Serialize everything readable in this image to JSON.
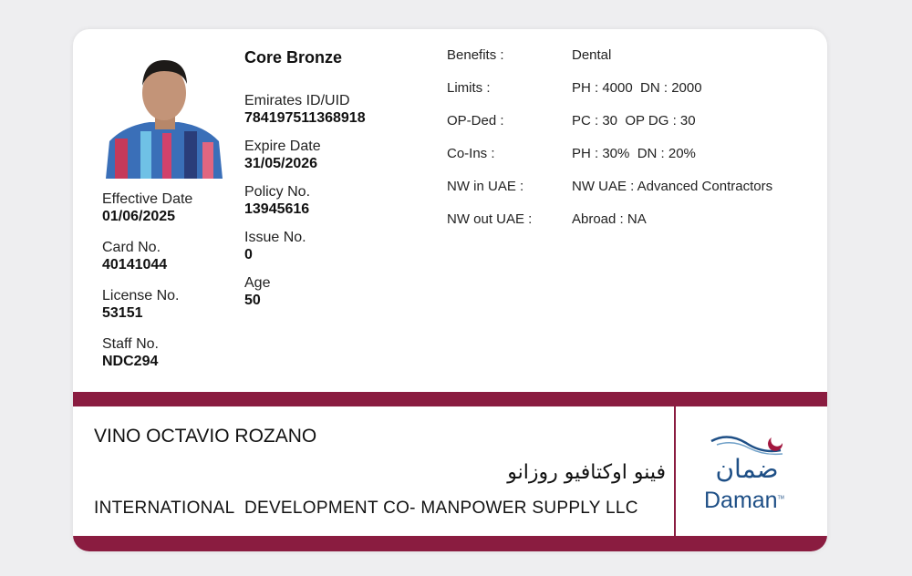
{
  "card": {
    "plan": "Core Bronze",
    "left_fields": [
      {
        "label": "Effective Date",
        "value": "01/06/2025"
      },
      {
        "label": "Card No.",
        "value": "40141044"
      },
      {
        "label": "License No.",
        "value": "53151"
      },
      {
        "label": "Staff No.",
        "value": "NDC294"
      }
    ],
    "middle_fields": [
      {
        "label": "Emirates ID/UID",
        "value": "784197511368918"
      },
      {
        "label": "Expire Date",
        "value": "31/05/2026"
      },
      {
        "label": "Policy No.",
        "value": "13945616"
      },
      {
        "label": "Issue No.",
        "value": "0"
      },
      {
        "label": "Age",
        "value": "50"
      }
    ],
    "benefits": [
      {
        "label": "Benefits :",
        "value": "Dental"
      },
      {
        "label": "Limits :",
        "value": "PH : 4000  DN : 2000"
      },
      {
        "label": "OP-Ded :",
        "value": "PC : 30  OP DG : 30"
      },
      {
        "label": "Co-Ins :",
        "value": "PH : 30%  DN : 20%"
      },
      {
        "label": "NW in UAE :",
        "value": "NW UAE : Advanced Contractors"
      },
      {
        "label": "NW out UAE :",
        "value": "Abroad : NA"
      }
    ],
    "holder_name": "VINO OCTAVIO ROZANO",
    "holder_name_arabic": "فينو اوكتافيو روزانو",
    "company": "INTERNATIONAL  DEVELOPMENT CO- MANPOWER SUPPLY LLC",
    "logo": {
      "arabic": "ضمان",
      "text": "Daman",
      "tm": "TM"
    },
    "colors": {
      "band": "#8a1c40",
      "logo_blue": "#1e4f86",
      "logo_accent": "#a3173f"
    }
  }
}
